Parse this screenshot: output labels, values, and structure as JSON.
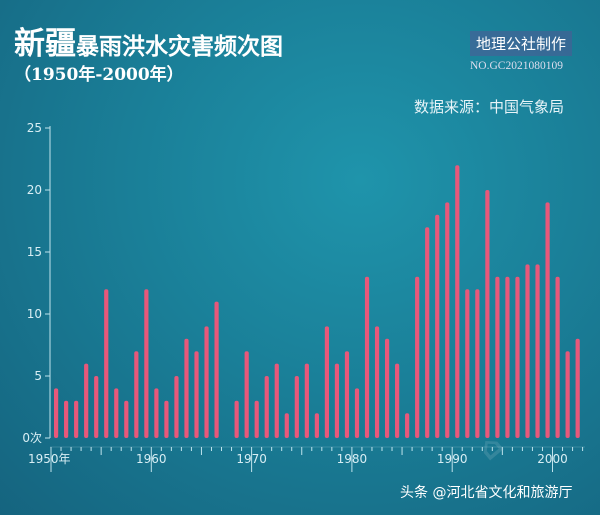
{
  "header": {
    "title_big": "新疆",
    "title_rest": "暴雨洪水灾害频次图",
    "subtitle": "（1950年-2000年）",
    "maker": "地理公社制作",
    "code": "NO.GC2021080109",
    "source": "数据来源：中国气象局"
  },
  "watermark": "头条 @河北省文化和旅游厅",
  "watermark_logo": "地理公社",
  "colors": {
    "bar": "#e8587a",
    "axis": "#bfe3ec"
  },
  "chart_data": {
    "type": "bar",
    "title": "新疆暴雨洪水灾害频次图",
    "ylim": [
      0,
      25
    ],
    "yticks": [
      "0次",
      "5",
      "10",
      "15",
      "20",
      "25"
    ],
    "ytick_values": [
      0,
      5,
      10,
      15,
      20,
      25
    ],
    "xticks": [
      "1950年",
      "1960",
      "1970",
      "1980",
      "1990",
      "2000"
    ],
    "grid": false,
    "x": [
      1950,
      1951,
      1952,
      1953,
      1954,
      1955,
      1956,
      1957,
      1958,
      1959,
      1960,
      1961,
      1962,
      1963,
      1964,
      1965,
      1966,
      1968,
      1969,
      1970,
      1971,
      1972,
      1973,
      1974,
      1975,
      1976,
      1977,
      1978,
      1979,
      1980,
      1981,
      1982,
      1983,
      1984,
      1985,
      1986,
      1987,
      1988,
      1989,
      1990,
      1991,
      1992,
      1993,
      1994,
      1995,
      1996,
      1997,
      1998,
      1999,
      2000,
      2001,
      2002
    ],
    "values": [
      4,
      3,
      3,
      6,
      5,
      12,
      4,
      3,
      7,
      12,
      4,
      3,
      5,
      8,
      7,
      9,
      11,
      3,
      7,
      3,
      5,
      6,
      2,
      5,
      6,
      2,
      9,
      6,
      7,
      4,
      13,
      9,
      8,
      6,
      2,
      13,
      17,
      18,
      19,
      22,
      12,
      12,
      20,
      13,
      13,
      13,
      14,
      14,
      19,
      13,
      7,
      8
    ]
  }
}
